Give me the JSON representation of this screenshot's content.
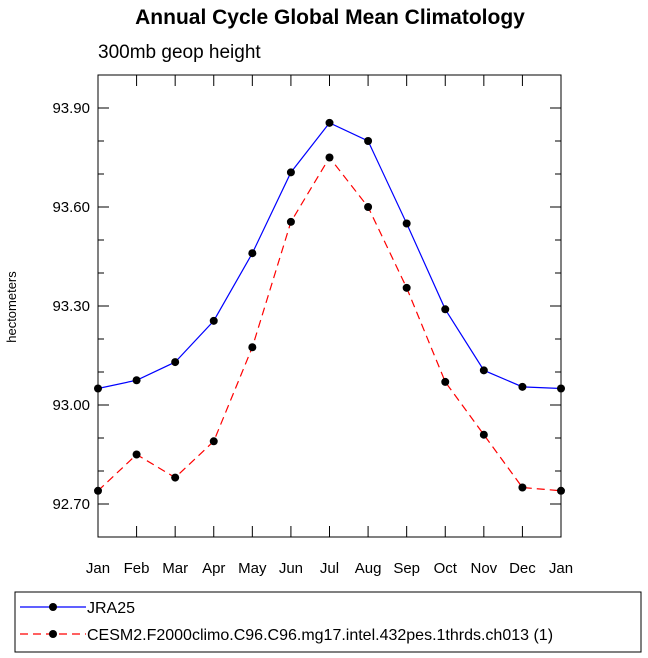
{
  "chart_data": {
    "type": "line",
    "title": "Annual Cycle Global Mean Climatology",
    "subtitle": "300mb geop height",
    "ylabel": "hectometers",
    "xlabel": "",
    "categories": [
      "Jan",
      "Feb",
      "Mar",
      "Apr",
      "May",
      "Jun",
      "Jul",
      "Aug",
      "Sep",
      "Oct",
      "Nov",
      "Dec",
      "Jan"
    ],
    "ylim": [
      92.6,
      94.0
    ],
    "yticks": [
      "92.70",
      "93.00",
      "93.30",
      "93.60",
      "93.90"
    ],
    "grid": false,
    "legend_position": "bottom",
    "series": [
      {
        "name": "JRA25",
        "color": "#0000ff",
        "dash": "solid",
        "values": [
          93.05,
          93.075,
          93.13,
          93.255,
          93.46,
          93.705,
          93.855,
          93.8,
          93.55,
          93.29,
          93.105,
          93.055,
          93.05
        ]
      },
      {
        "name": "CESM2.F2000climo.C96.C96.mg17.intel.432pes.1thrds.ch013 (1)",
        "color": "#ff0000",
        "dash": "dashed",
        "values": [
          92.74,
          92.85,
          92.78,
          92.89,
          93.175,
          93.555,
          93.75,
          93.6,
          93.355,
          93.07,
          92.91,
          92.75,
          92.74
        ]
      }
    ]
  }
}
